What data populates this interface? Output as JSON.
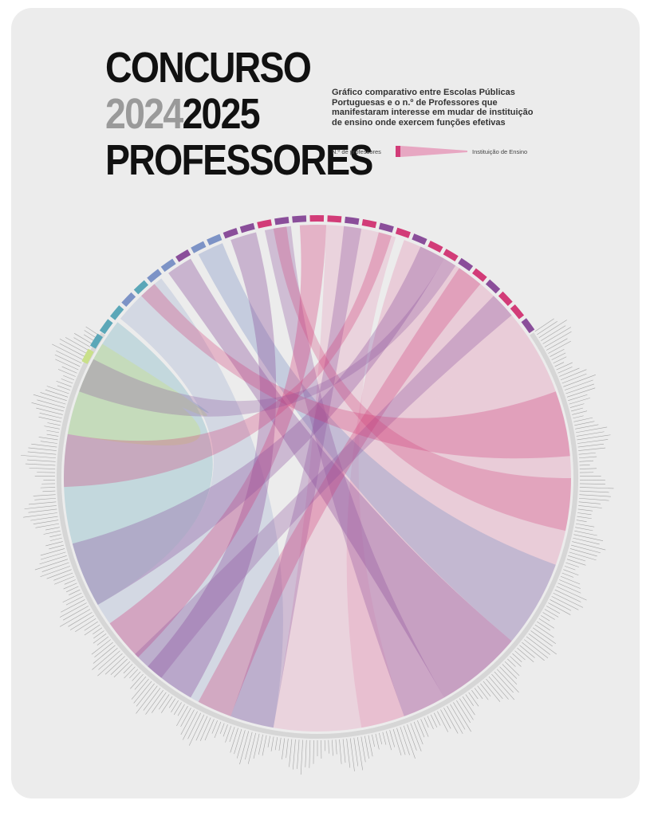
{
  "header": {
    "line1": "CONCURSO",
    "year_a": "2024",
    "year_b": "2025",
    "line3": "PROFESSORES"
  },
  "subtitle": "Gráfico comparativo entre Escolas Públicas Portuguesas e o n.º de Professores que manifestaram interesse em mudar de instituição de ensino onde exercem funções efetivas",
  "legend": {
    "teachers_label": "N.º de professores",
    "institution_label": "Instituição de Ensino"
  },
  "colors": {
    "background": "#ececec",
    "teal": "#5ba7b8",
    "blue": "#7d93c6",
    "purple": "#8a4e9a",
    "magenta": "#d23c78",
    "pink": "#e7a7c2",
    "lime": "#c9e08a",
    "gray_label": "#8c8c8c"
  }
}
